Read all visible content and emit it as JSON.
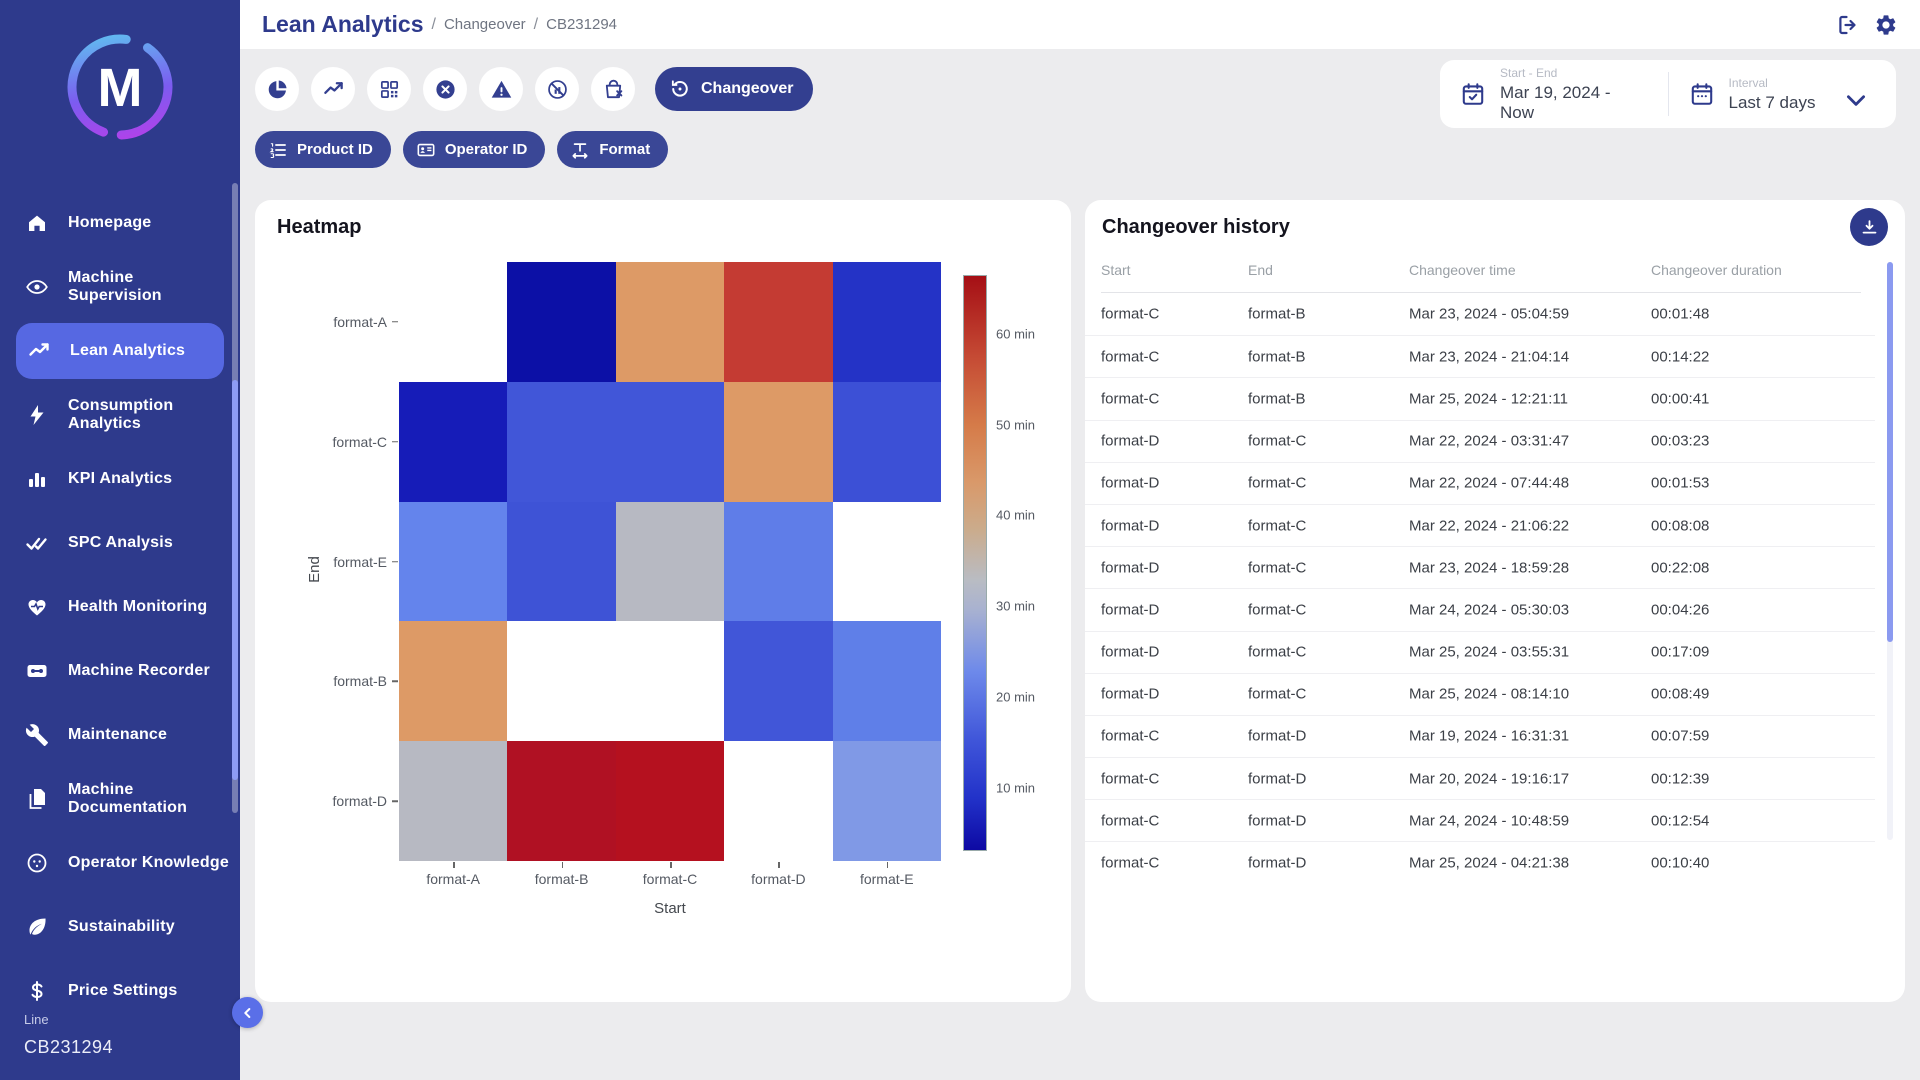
{
  "sidebar": {
    "logo_letter": "M",
    "items": [
      {
        "label": "Homepage",
        "icon": "home-icon",
        "active": false
      },
      {
        "label": "Machine Supervision",
        "icon": "eye-icon",
        "active": false
      },
      {
        "label": "Lean Analytics",
        "icon": "trend-icon",
        "active": true
      },
      {
        "label": "Consumption Analytics",
        "icon": "bolt-icon",
        "active": false
      },
      {
        "label": "KPI Analytics",
        "icon": "bar-chart-icon",
        "active": false
      },
      {
        "label": "SPC Analysis",
        "icon": "double-check-icon",
        "active": false
      },
      {
        "label": "Health Monitoring",
        "icon": "heart-pulse-icon",
        "active": false
      },
      {
        "label": "Machine Recorder",
        "icon": "cassette-icon",
        "active": false
      },
      {
        "label": "Maintenance",
        "icon": "wrench-icon",
        "active": false
      },
      {
        "label": "Machine Documentation",
        "icon": "documents-icon",
        "active": false
      },
      {
        "label": "Operator Knowledge",
        "icon": "person-icon",
        "active": false
      },
      {
        "label": "Sustainability",
        "icon": "leaf-icon",
        "active": false
      },
      {
        "label": "Price Settings",
        "icon": "dollar-icon",
        "active": false
      }
    ],
    "line_label": "Line",
    "line_value": "CB231294"
  },
  "topbar": {
    "title": "Lean Analytics",
    "breadcrumbs": [
      "Changeover",
      "CB231294"
    ]
  },
  "toolbar": {
    "icon_buttons": [
      {
        "name": "pie-chart-button",
        "icon": "pie-chart-icon"
      },
      {
        "name": "trend-button",
        "icon": "trend-icon"
      },
      {
        "name": "qr-grid-button",
        "icon": "qr-grid-icon"
      },
      {
        "name": "x-circle-button",
        "icon": "x-circle-icon"
      },
      {
        "name": "warning-button",
        "icon": "warning-icon"
      },
      {
        "name": "gauge-slash-button",
        "icon": "gauge-slash-icon"
      },
      {
        "name": "bag-x-button",
        "icon": "bag-x-icon"
      }
    ],
    "active_button": {
      "label": "Changeover",
      "icon": "changeover-icon"
    }
  },
  "filters": {
    "chips": [
      {
        "label": "Product ID",
        "icon": "numbered-list-icon"
      },
      {
        "label": "Operator ID",
        "icon": "id-badge-icon"
      },
      {
        "label": "Format",
        "icon": "text-width-icon"
      }
    ]
  },
  "date_range": {
    "start_end_label": "Start - End",
    "start_end_value": "Mar 19, 2024 - Now",
    "interval_label": "Interval",
    "interval_value": "Last 7 days"
  },
  "heatmap_card": {
    "title": "Heatmap"
  },
  "history_card": {
    "title": "Changeover history",
    "columns": [
      "Start",
      "End",
      "Changeover time",
      "Changeover duration"
    ],
    "rows": [
      {
        "start": "format-C",
        "end": "format-B",
        "time": "Mar 23, 2024 - 05:04:59",
        "duration": "00:01:48"
      },
      {
        "start": "format-C",
        "end": "format-B",
        "time": "Mar 23, 2024 - 21:04:14",
        "duration": "00:14:22"
      },
      {
        "start": "format-C",
        "end": "format-B",
        "time": "Mar 25, 2024 - 12:21:11",
        "duration": "00:00:41"
      },
      {
        "start": "format-D",
        "end": "format-C",
        "time": "Mar 22, 2024 - 03:31:47",
        "duration": "00:03:23"
      },
      {
        "start": "format-D",
        "end": "format-C",
        "time": "Mar 22, 2024 - 07:44:48",
        "duration": "00:01:53"
      },
      {
        "start": "format-D",
        "end": "format-C",
        "time": "Mar 22, 2024 - 21:06:22",
        "duration": "00:08:08"
      },
      {
        "start": "format-D",
        "end": "format-C",
        "time": "Mar 23, 2024 - 18:59:28",
        "duration": "00:22:08"
      },
      {
        "start": "format-D",
        "end": "format-C",
        "time": "Mar 24, 2024 - 05:30:03",
        "duration": "00:04:26"
      },
      {
        "start": "format-D",
        "end": "format-C",
        "time": "Mar 25, 2024 - 03:55:31",
        "duration": "00:17:09"
      },
      {
        "start": "format-D",
        "end": "format-C",
        "time": "Mar 25, 2024 - 08:14:10",
        "duration": "00:08:49"
      },
      {
        "start": "format-C",
        "end": "format-D",
        "time": "Mar 19, 2024 - 16:31:31",
        "duration": "00:07:59"
      },
      {
        "start": "format-C",
        "end": "format-D",
        "time": "Mar 20, 2024 - 19:16:17",
        "duration": "00:12:39"
      },
      {
        "start": "format-C",
        "end": "format-D",
        "time": "Mar 24, 2024 - 10:48:59",
        "duration": "00:12:54"
      },
      {
        "start": "format-C",
        "end": "format-D",
        "time": "Mar 25, 2024 - 04:21:38",
        "duration": "00:10:40"
      }
    ]
  },
  "chart_data": {
    "type": "heatmap",
    "title": "Heatmap",
    "xlabel": "Start",
    "ylabel": "End",
    "unit": "min",
    "x_categories": [
      "format-A",
      "format-B",
      "format-C",
      "format-D",
      "format-E"
    ],
    "y_categories": [
      "format-A",
      "format-C",
      "format-E",
      "format-B",
      "format-D"
    ],
    "values_minutes": [
      [
        null,
        5,
        45,
        57,
        13
      ],
      [
        10,
        20,
        20,
        45,
        19
      ],
      [
        25,
        19,
        33,
        24,
        null
      ],
      [
        45,
        null,
        null,
        20,
        24
      ],
      [
        33,
        63,
        62,
        null,
        28
      ]
    ],
    "cell_colors": [
      [
        null,
        "#0c10a6",
        "#dd9a66",
        "#c43b33",
        "#2433c6"
      ],
      [
        "#161cb8",
        "#4156d8",
        "#4156d8",
        "#dd9a66",
        "#3c50d6"
      ],
      [
        "#6484ec",
        "#3e53d6",
        "#b7b9c2",
        "#5f7de8",
        null
      ],
      [
        "#dd9a66",
        null,
        null,
        "#4156d8",
        "#5f7fe8"
      ],
      [
        "#b7b9c2",
        "#b01123",
        "#b5111f",
        null,
        "#8099e6"
      ]
    ],
    "colorbar": {
      "min": 3,
      "max": 66.5,
      "ticks": [
        60,
        50,
        40,
        30,
        20,
        10
      ],
      "tick_labels": [
        "60 min",
        "50 min",
        "40 min",
        "30 min",
        "20 min",
        "10 min"
      ],
      "position": "right"
    },
    "grid": false,
    "legend": false
  },
  "colors": {
    "sidebar_bg": "#2e3a8c",
    "accent": "#333f90",
    "active_item": "#5668e2",
    "content_bg": "#ececee",
    "scrollbar": "#8b9af0",
    "heat_low": "#0d09a3",
    "heat_mid": "#b9bcc3",
    "heat_high": "#a50f15"
  }
}
